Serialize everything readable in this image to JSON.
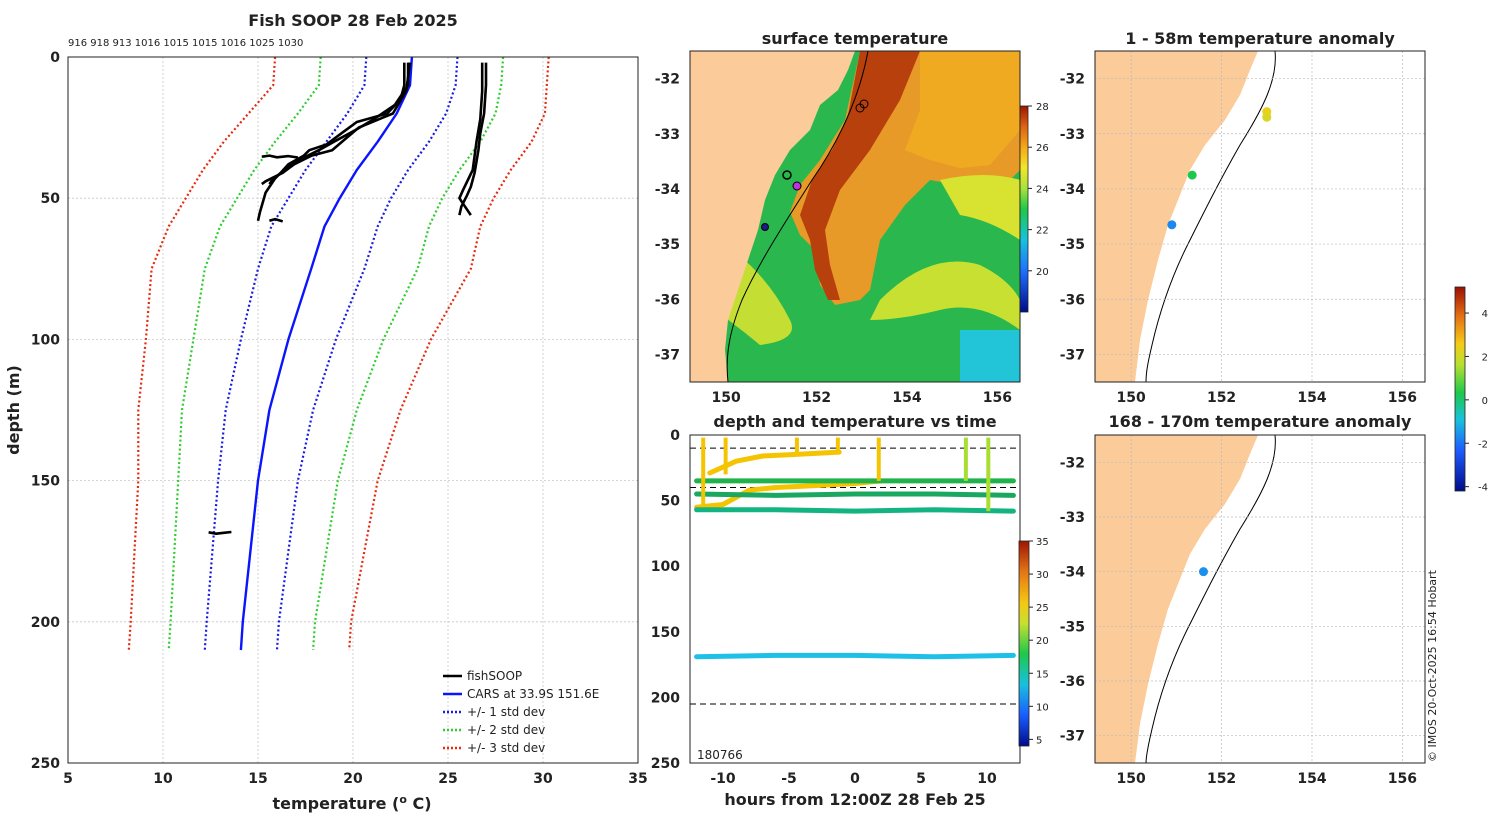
{
  "chart_data": [
    {
      "type": "line",
      "title": "Fish SOOP 28 Feb 2025",
      "xlabel_main": "temperature (",
      "xlabel_sup": "o",
      "xlabel_end": " C)",
      "ylabel": "depth (m)",
      "xlim": [
        5,
        35
      ],
      "ylim": [
        250,
        0
      ],
      "grid": true,
      "x_ticks": [
        "5",
        "10",
        "15",
        "20",
        "25",
        "30",
        "35"
      ],
      "y_ticks": [
        "0",
        "50",
        "100",
        "150",
        "200",
        "250"
      ],
      "top_labels": "916 918 913 1016 1015 1015 1016 1025 1030",
      "legend": [
        "fishSOOP",
        "CARS at 33.9S 151.6E",
        "+/- 1 std dev",
        "+/- 2 std dev",
        "+/- 3 std dev"
      ],
      "legend_position": "bottom-right",
      "depth": [
        0,
        10,
        20,
        30,
        40,
        50,
        60,
        75,
        100,
        125,
        150,
        175,
        200,
        210
      ],
      "cars_mean": [
        23.1,
        23.0,
        22.3,
        21.3,
        20.2,
        19.3,
        18.5,
        17.8,
        16.6,
        15.6,
        15.0,
        14.6,
        14.2,
        14.1
      ],
      "std1_low": [
        20.7,
        20.6,
        19.7,
        18.6,
        17.5,
        16.6,
        15.7,
        15.0,
        14.1,
        13.3,
        12.9,
        12.6,
        12.3,
        12.2
      ],
      "std1_high": [
        25.5,
        25.4,
        24.9,
        24.0,
        22.9,
        22.0,
        21.3,
        20.6,
        19.1,
        17.9,
        17.1,
        16.6,
        16.1,
        16.0
      ],
      "std2_low": [
        18.3,
        18.2,
        17.1,
        15.9,
        14.8,
        13.9,
        13.0,
        12.2,
        11.6,
        11.0,
        10.8,
        10.6,
        10.4,
        10.3
      ],
      "std2_high": [
        27.9,
        27.8,
        27.5,
        26.7,
        25.6,
        24.7,
        24.0,
        23.4,
        21.6,
        20.2,
        19.2,
        18.6,
        18.0,
        17.9
      ],
      "std3_low": [
        15.9,
        15.8,
        14.5,
        13.2,
        12.1,
        11.2,
        10.3,
        9.4,
        9.1,
        8.7,
        8.7,
        8.5,
        8.3,
        8.2
      ],
      "std3_high": [
        30.3,
        30.2,
        30.1,
        29.4,
        28.3,
        27.4,
        26.7,
        26.2,
        24.1,
        22.5,
        21.3,
        20.6,
        19.9,
        19.8
      ],
      "fish_profiles": [
        {
          "t": [
            22.7,
            22.7,
            22.5,
            21.8,
            20.2,
            19.4,
            18.6,
            17.7,
            17.4,
            16.6,
            16.2,
            15.7,
            15.6
          ],
          "d": [
            2,
            10,
            15,
            20,
            23,
            27,
            31,
            33,
            35,
            38,
            41,
            44,
            45
          ]
        },
        {
          "t": [
            22.9,
            22.9,
            22.2,
            21.1,
            20.1,
            19.0,
            18.2,
            17.3,
            16.5,
            15.9,
            15.4,
            15.1,
            15.0
          ],
          "d": [
            2,
            10,
            17,
            22,
            26,
            30,
            33,
            36,
            39,
            43,
            48,
            55,
            58
          ]
        },
        {
          "t": [
            23.0,
            22.8,
            22.1,
            20.3,
            19.6,
            18.9,
            17.8,
            16.9,
            16.3,
            15.7,
            15.4,
            15.2
          ],
          "d": [
            2,
            12,
            20,
            25,
            29,
            33,
            35,
            38,
            41,
            43,
            44,
            45
          ]
        },
        {
          "t": [
            27.0,
            27.0,
            26.9,
            26.7,
            26.6,
            26.5,
            26.4,
            26.2,
            26.0,
            25.7,
            25.6
          ],
          "d": [
            2,
            10,
            20,
            27,
            33,
            37,
            41,
            46,
            49,
            53,
            56
          ]
        },
        {
          "t": [
            26.8,
            26.8,
            26.7,
            26.5,
            26.3,
            25.8,
            25.6,
            25.9,
            26.2
          ],
          "d": [
            2,
            12,
            22,
            30,
            40,
            47,
            50,
            53,
            56
          ]
        },
        {
          "t": [
            12.4,
            12.8,
            13.2,
            13.6
          ],
          "d": [
            168.3,
            168.8,
            168.5,
            168.2
          ]
        },
        {
          "t": [
            15.2,
            15.6,
            16.0,
            16.6,
            17.1
          ],
          "d": [
            35.3,
            34.9,
            35.5,
            35.1,
            35.6
          ]
        },
        {
          "t": [
            15.6,
            15.9,
            16.3
          ],
          "d": [
            58.0,
            57.4,
            58.2
          ]
        }
      ]
    },
    {
      "type": "heatmap",
      "title": "surface temperature",
      "x_ticks": [
        "150",
        "152",
        "154",
        "156"
      ],
      "y_ticks": [
        "-32",
        "-33",
        "-34",
        "-35",
        "-36",
        "-37"
      ],
      "xlim": [
        149.2,
        156.5
      ],
      "ylim": [
        -37.5,
        -31.5
      ],
      "colorbar_ticks": [
        "20",
        "22",
        "24",
        "26",
        "28"
      ],
      "colorbar_range": [
        18,
        28
      ]
    },
    {
      "type": "scatter",
      "title": "depth and temperature vs time",
      "xlabel": "hours from 12:00Z 28 Feb 25",
      "x_ticks": [
        "-10",
        "-5",
        "0",
        "5",
        "10"
      ],
      "y_ticks": [
        "0",
        "50",
        "100",
        "150",
        "200",
        "250"
      ],
      "xlim": [
        -12.5,
        12.5
      ],
      "ylim": [
        250,
        0
      ],
      "colorbar_ticks": [
        "5",
        "10",
        "15",
        "20",
        "25",
        "30",
        "35"
      ],
      "colorbar_range": [
        4,
        35
      ],
      "corner_label": "180766",
      "reference_depths": [
        10,
        40,
        205
      ],
      "series": [
        {
          "name": "yellow-track-a",
          "color": "#f5c400",
          "x": [
            -12,
            -10,
            -8,
            -6,
            -4,
            -2,
            0,
            2
          ],
          "y": [
            55,
            53,
            42,
            40,
            39,
            38,
            37,
            35
          ]
        },
        {
          "name": "yellow-track-b",
          "color": "#f5c400",
          "x": [
            -11,
            -9,
            -7,
            -5,
            -3,
            -1.2
          ],
          "y": [
            29,
            20,
            16,
            15,
            14,
            13
          ]
        },
        {
          "name": "green-track-a",
          "color": "#22b24c",
          "x": [
            -12,
            -6,
            0,
            6,
            12
          ],
          "y": [
            35,
            35,
            35,
            35,
            35
          ]
        },
        {
          "name": "green-track-b",
          "color": "#1aa860",
          "x": [
            -12,
            -6,
            0,
            6,
            12
          ],
          "y": [
            45,
            46,
            45,
            45,
            46
          ]
        },
        {
          "name": "teal-track",
          "color": "#14b482",
          "x": [
            -12,
            -6,
            0,
            6,
            12
          ],
          "y": [
            57,
            57,
            58,
            57,
            58
          ]
        },
        {
          "name": "cyan-track",
          "color": "#1ec0e8",
          "x": [
            -12,
            -6,
            0,
            6,
            12
          ],
          "y": [
            169,
            168,
            168,
            169,
            168
          ]
        }
      ]
    },
    {
      "type": "scatter",
      "title": "1 - 58m temperature anomaly",
      "x_ticks": [
        "150",
        "152",
        "154",
        "156"
      ],
      "y_ticks": [
        "-32",
        "-33",
        "-34",
        "-35",
        "-36",
        "-37"
      ],
      "points": [
        {
          "lon": 153.0,
          "lat": -32.6,
          "anomaly": 2.4
        },
        {
          "lon": 153.0,
          "lat": -32.7,
          "anomaly": 2.1
        },
        {
          "lon": 151.35,
          "lat": -33.75,
          "anomaly": 0.3
        },
        {
          "lon": 150.9,
          "lat": -34.65,
          "anomaly": -1.7
        }
      ]
    },
    {
      "type": "scatter",
      "title": "168 - 170m temperature anomaly",
      "x_ticks": [
        "150",
        "152",
        "154",
        "156"
      ],
      "y_ticks": [
        "-32",
        "-33",
        "-34",
        "-35",
        "-36",
        "-37"
      ],
      "points": [
        {
          "lon": 151.6,
          "lat": -34.0,
          "anomaly": -1.6
        }
      ]
    }
  ],
  "anomaly_colorbar": {
    "ticks": [
      "4",
      "2",
      "0",
      "-2",
      "-4"
    ],
    "range": [
      -4.2,
      5.2
    ]
  },
  "credit": "© IMOS 20-Oct-2025 16:54 Hobart",
  "colors": {
    "land": "#fbcb9a",
    "cars": "#0a14ff",
    "std1": "#1a1ae6",
    "std2": "#2ecc2e",
    "std3": "#e62a10"
  }
}
